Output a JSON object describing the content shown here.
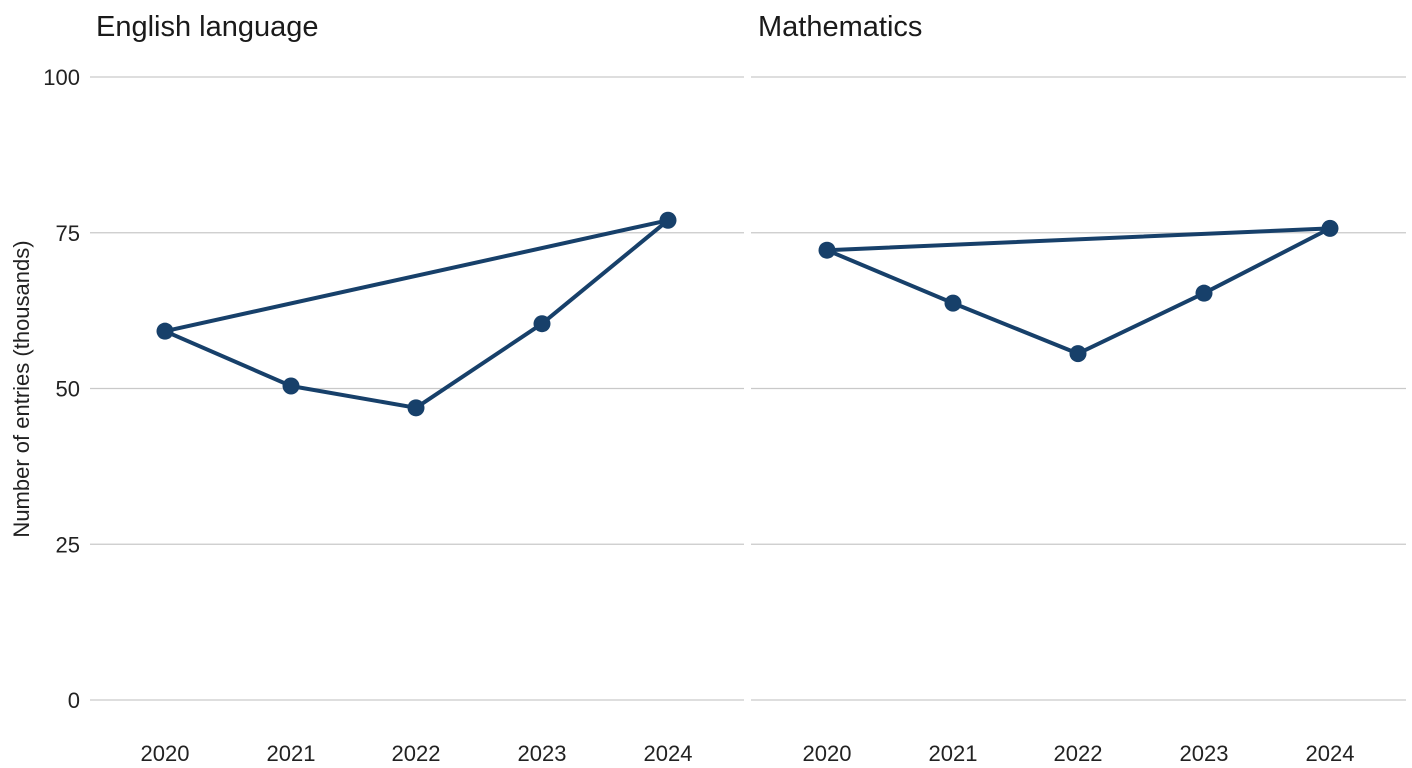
{
  "chart_data": {
    "type": "line",
    "ylabel": "Number of entries (thousands)",
    "ylim": [
      0,
      100
    ],
    "yticks": [
      0,
      25,
      50,
      75,
      100
    ],
    "categories": [
      "2020",
      "2021",
      "2022",
      "2023",
      "2024"
    ],
    "grid": true,
    "line_color": "#17406a",
    "panels": [
      {
        "title": "English language",
        "points": [
          {
            "x": "2020",
            "y": 59.2
          },
          {
            "x": "2021",
            "y": 50.4
          },
          {
            "x": "2022",
            "y": 46.9
          },
          {
            "x": "2023",
            "y": 60.4
          },
          {
            "x": "2024",
            "y": 77.0
          }
        ],
        "path_order": [
          "2020",
          "2021",
          "2022",
          "2023",
          "2024",
          "2020"
        ]
      },
      {
        "title": "Mathematics",
        "points": [
          {
            "x": "2020",
            "y": 72.2
          },
          {
            "x": "2021",
            "y": 63.7
          },
          {
            "x": "2022",
            "y": 55.6
          },
          {
            "x": "2023",
            "y": 65.3
          },
          {
            "x": "2024",
            "y": 75.7
          }
        ],
        "path_order": [
          "2020",
          "2021",
          "2022",
          "2023",
          "2024",
          "2020"
        ]
      }
    ]
  }
}
